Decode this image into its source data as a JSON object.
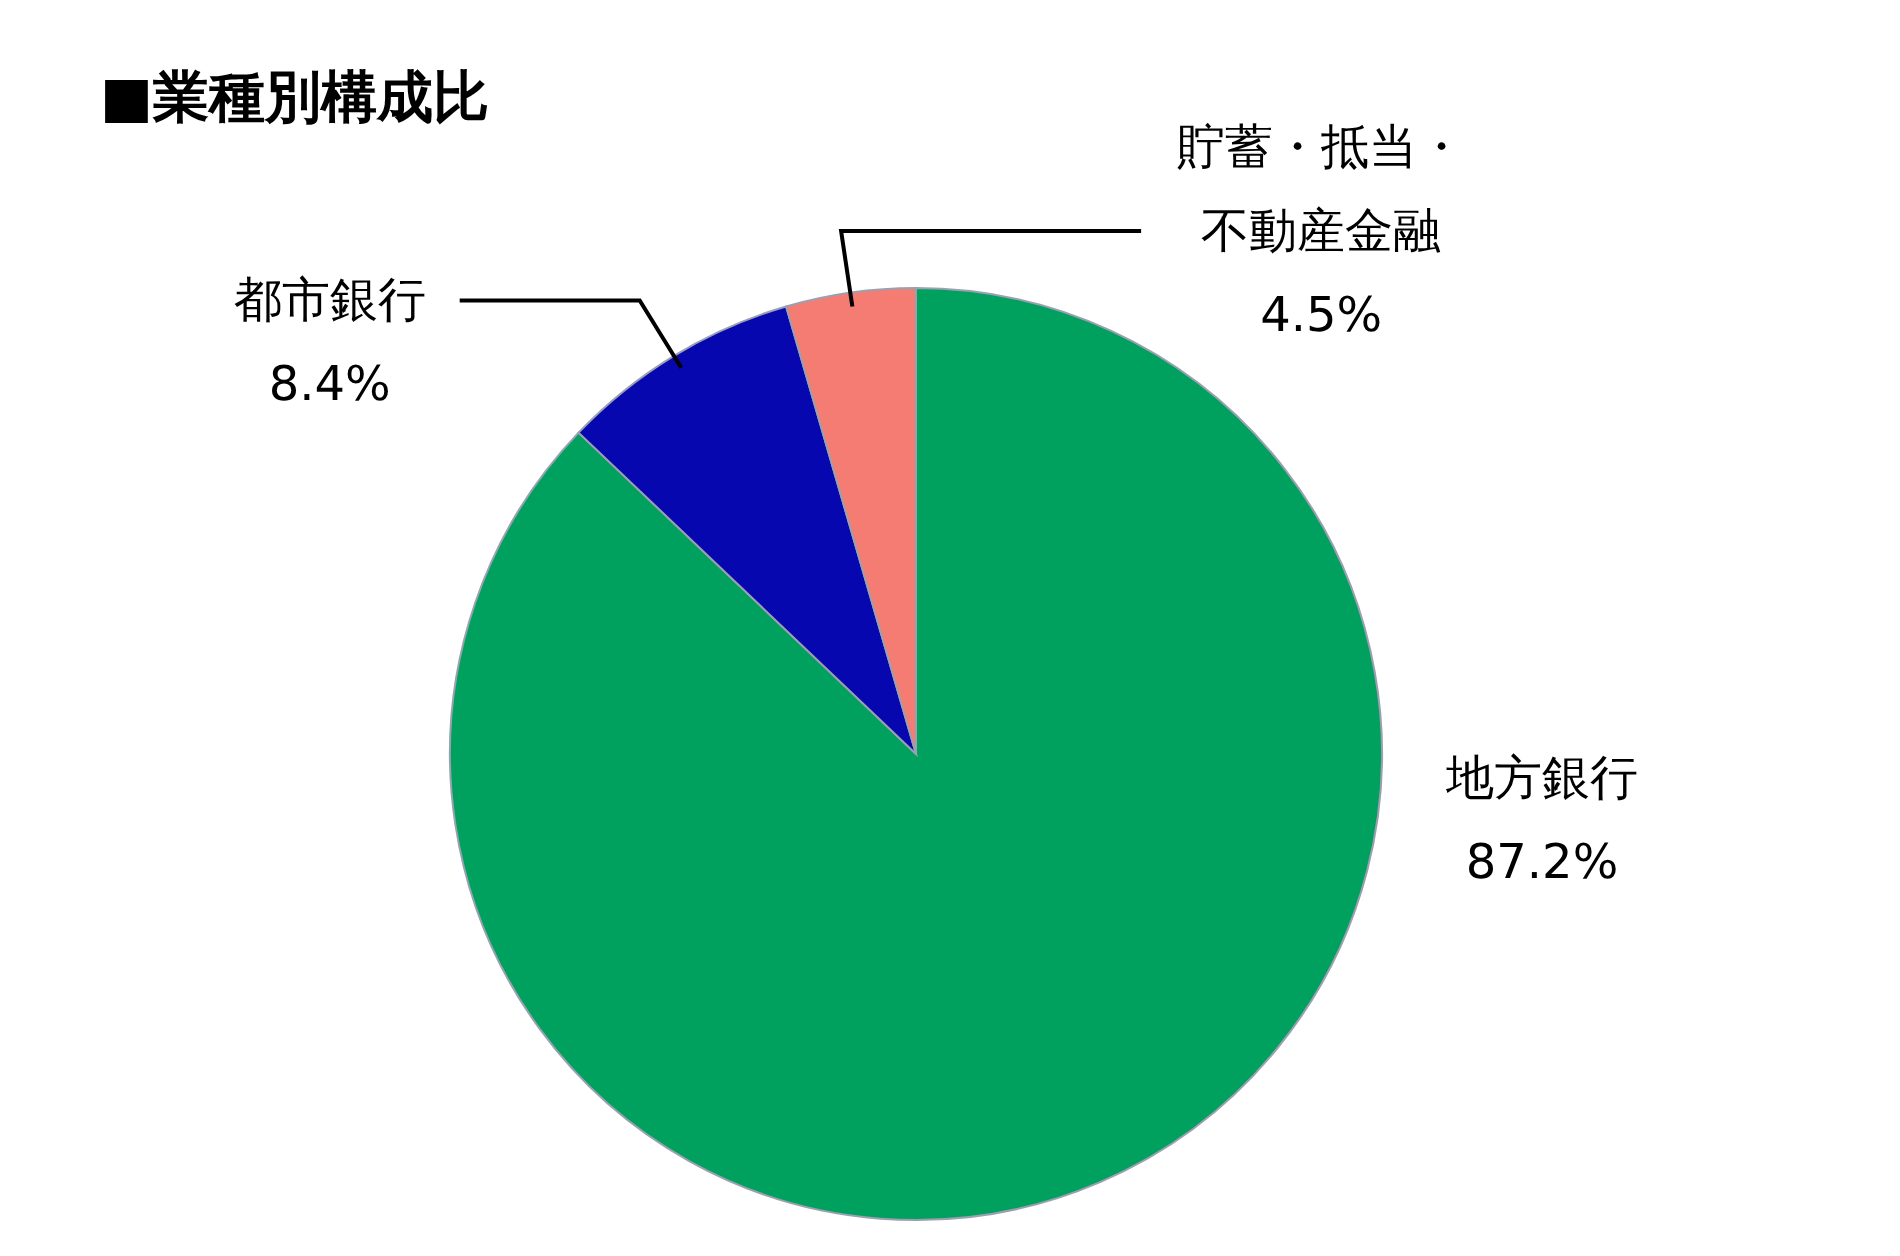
{
  "chart_data": {
    "type": "pie",
    "title": "■業種別構成比",
    "categories": [
      "地方銀行",
      "都市銀行",
      "貯蓄・抵当・不動産金融"
    ],
    "values": [
      87.2,
      8.4,
      4.5
    ],
    "colors": [
      "#00a15e",
      "#0707b0",
      "#f47c72"
    ],
    "value_labels": [
      "87.2%",
      "8.4%",
      "4.5%"
    ]
  }
}
